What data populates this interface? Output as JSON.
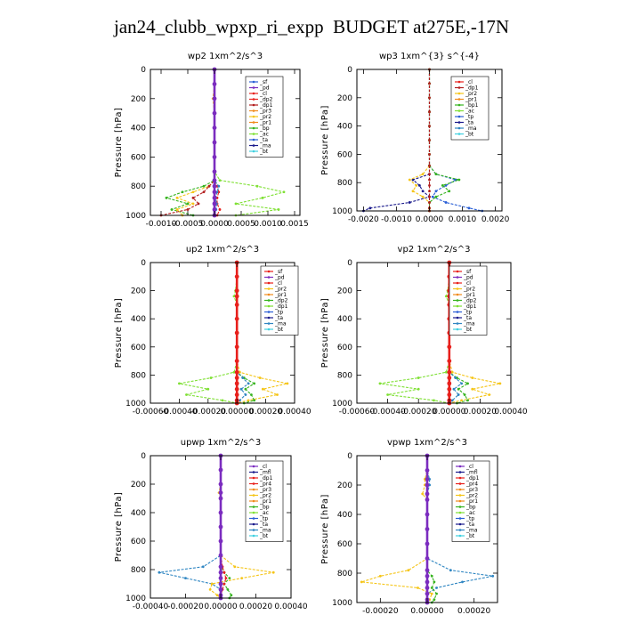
{
  "figure": {
    "title": "jan24_clubb_wpxp_ri_expp  BUDGET at275E,-17N"
  },
  "colors": {
    "red": "#e8201c",
    "darkred": "#b21e1e",
    "purple": "#7b2cbf",
    "magenta": "#c0399a",
    "orange": "#f08a1c",
    "yellow": "#f5c518",
    "green": "#36b31f",
    "lime": "#7fe034",
    "blue": "#2a5fd6",
    "navy": "#1a1a8c",
    "steel": "#2f86c2",
    "cyan": "#3fd0e0"
  },
  "chart_data": [
    {
      "type": "line",
      "title": "wp2  1xm^2/s^3",
      "ylabel": "Pressure [hPa]",
      "xlim": [
        -0.0012,
        0.0016
      ],
      "ylim": [
        1000,
        0
      ],
      "xticks": [
        -0.001,
        -0.0005,
        0.0,
        0.0005,
        0.001,
        0.0015
      ],
      "xticklabels": [
        "-0.0010",
        "-0.0005",
        "0.0000",
        "0.0005",
        "0.0010",
        "0.0015"
      ],
      "yticks": [
        0,
        200,
        400,
        600,
        800,
        1000
      ],
      "legend": [
        "_sf",
        "_pd",
        "_cl",
        "_dp2",
        "_dp1",
        "_pr3",
        "_pr2",
        "_pr1",
        "_bp",
        "_ac",
        "_ta",
        "_ma",
        "_bt"
      ],
      "legend_colors": [
        "blue",
        "purple",
        "red",
        "red",
        "darkred",
        "orange",
        "yellow",
        "orange",
        "green",
        "lime",
        "blue",
        "navy",
        "cyan"
      ],
      "y": [
        0,
        100,
        200,
        300,
        400,
        500,
        600,
        700,
        760,
        800,
        840,
        880,
        920,
        960,
        1000
      ],
      "series": [
        {
          "name": "_bp",
          "color": "lime",
          "values": [
            0,
            0,
            0,
            0,
            0,
            0,
            0,
            0,
            0.0001,
            0.0008,
            0.0013,
            0.0009,
            0.0004,
            0.0012,
            0.0004
          ]
        },
        {
          "name": "_pr1",
          "color": "green",
          "values": [
            0,
            0,
            0,
            0,
            0,
            0,
            0,
            0,
            0,
            -0.0002,
            -0.0006,
            -0.0009,
            -0.0005,
            -0.0008,
            -0.0004
          ]
        },
        {
          "name": "_pr2",
          "color": "yellow",
          "values": [
            0,
            0,
            -3e-05,
            0,
            0,
            0,
            0,
            0,
            0,
            -0.0001,
            -0.0004,
            -0.0007,
            -0.0004,
            -0.0007,
            -0.0006
          ]
        },
        {
          "name": "_dp1",
          "color": "darkred",
          "values": [
            0,
            0,
            0,
            0,
            0,
            0,
            0,
            0,
            0,
            -0.0001,
            -0.0002,
            -0.0004,
            -0.0003,
            -0.0005,
            -0.001
          ]
        },
        {
          "name": "_cl",
          "color": "red",
          "values": [
            0,
            0,
            0,
            0,
            0,
            0,
            0,
            0,
            0,
            5e-05,
            8e-05,
            5e-05,
            5e-05,
            0.0001,
            5e-05
          ]
        },
        {
          "name": "_ta",
          "color": "steel",
          "values": [
            0,
            0,
            0,
            0,
            0,
            0,
            0,
            0,
            0,
            8e-05,
            5e-05,
            2e-05,
            4e-05,
            3e-05,
            0.0
          ]
        },
        {
          "name": "_bt",
          "color": "purple",
          "values": [
            0,
            0,
            0,
            0,
            0,
            0,
            0,
            0,
            0,
            0,
            0,
            0,
            0,
            0,
            0
          ]
        }
      ]
    },
    {
      "type": "line",
      "title": "wp3  1xm^{3} s^{-4}",
      "ylabel": "Pressure [hPa]",
      "xlim": [
        -0.0022,
        0.0022
      ],
      "ylim": [
        1000,
        0
      ],
      "xticks": [
        -0.002,
        -0.001,
        0.0,
        0.001,
        0.002
      ],
      "xticklabels": [
        "-0.0020",
        "-0.0010",
        "0.0000",
        "0.0010",
        "0.0020"
      ],
      "yticks": [
        0,
        200,
        400,
        600,
        800,
        1000
      ],
      "legend": [
        "_cl",
        "_dp1",
        "_pr2",
        "_pr1",
        "_bp1",
        "_ac",
        "_tp",
        "_ta",
        "_ma",
        "_bt"
      ],
      "legend_colors": [
        "red",
        "darkred",
        "yellow",
        "orange",
        "green",
        "lime",
        "blue",
        "navy",
        "steel",
        "cyan"
      ],
      "y": [
        0,
        100,
        200,
        300,
        400,
        500,
        600,
        680,
        740,
        780,
        820,
        860,
        900,
        940,
        980,
        1000
      ],
      "series": [
        {
          "name": "_ta",
          "color": "navy",
          "values": [
            0,
            0,
            0,
            0,
            0,
            0,
            0,
            0,
            0,
            -0.0005,
            -0.0003,
            -0.0002,
            0,
            -0.0006,
            -0.0018,
            -0.002
          ]
        },
        {
          "name": "_tp",
          "color": "blue",
          "values": [
            0,
            0,
            0,
            0,
            0,
            0,
            0,
            0,
            0.0002,
            0.0008,
            0.0005,
            0.0002,
            0.0001,
            0.0005,
            0.0012,
            0.0016
          ]
        },
        {
          "name": "_pr2",
          "color": "yellow",
          "values": [
            0,
            0,
            0,
            0,
            0,
            0,
            0,
            0,
            -0.0002,
            -0.0006,
            -0.0004,
            -0.0005,
            -0.0002,
            0,
            0,
            0
          ]
        },
        {
          "name": "_ac",
          "color": "green",
          "values": [
            0,
            0,
            0,
            0,
            0,
            0,
            0,
            0,
            0.0002,
            0.0009,
            0.0004,
            0.0006,
            0.0002,
            0,
            0,
            0
          ]
        },
        {
          "name": "_dp1",
          "color": "darkred",
          "values": [
            0,
            0,
            0,
            0,
            0,
            0,
            0,
            0,
            0,
            0,
            0,
            0,
            0,
            0,
            0,
            0
          ]
        }
      ]
    },
    {
      "type": "line",
      "title": "up2  1xm^2/s^3",
      "ylabel": "Pressure [hPa]",
      "xlim": [
        -0.0006,
        0.0004
      ],
      "ylim": [
        1000,
        0
      ],
      "xticks": [
        -0.0006,
        -0.0004,
        -0.0002,
        0.0,
        0.0002,
        0.0004
      ],
      "xticklabels": [
        "-0.00060",
        "-0.00040",
        "-0.00020",
        "0.00000",
        "0.00020",
        "0.00040"
      ],
      "yticks": [
        0,
        200,
        400,
        600,
        800,
        1000
      ],
      "legend": [
        "_sf",
        "_pd",
        "_cl",
        "_pr2",
        "_pr1",
        "_dp2",
        "_dp1",
        "_tp",
        "_ta",
        "_ma",
        "_bt"
      ],
      "legend_colors": [
        "red",
        "purple",
        "red",
        "yellow",
        "orange",
        "green",
        "lime",
        "blue",
        "navy",
        "steel",
        "cyan"
      ],
      "y": [
        0,
        100,
        200,
        240,
        300,
        400,
        500,
        600,
        700,
        780,
        820,
        860,
        900,
        940,
        980,
        1000
      ],
      "series": [
        {
          "name": "_pr1",
          "color": "lime",
          "values": [
            0,
            0,
            -1e-05,
            -2e-05,
            0,
            0,
            0,
            0,
            0,
            -2e-05,
            -0.00018,
            -0.0004,
            -0.0002,
            -0.00035,
            -0.0001,
            0
          ]
        },
        {
          "name": "_pr2",
          "color": "yellow",
          "values": [
            0,
            0,
            0,
            0,
            0,
            0,
            0,
            0,
            0,
            2e-05,
            0.00016,
            0.00035,
            0.00018,
            0.00028,
            8e-05,
            0
          ]
        },
        {
          "name": "_dp1",
          "color": "green",
          "values": [
            0,
            0,
            0,
            0,
            0,
            0,
            0,
            0,
            0,
            0,
            5e-05,
            0.00012,
            6e-05,
            0.0001,
            0.00012,
            5e-05
          ]
        },
        {
          "name": "_ta",
          "color": "steel",
          "values": [
            0,
            0,
            0,
            0,
            0,
            0,
            0,
            0,
            0,
            0,
            4e-05,
            8e-05,
            3e-05,
            6e-05,
            2e-05,
            0
          ]
        },
        {
          "name": "_bt",
          "color": "red",
          "values": [
            0,
            0,
            0,
            0,
            0,
            0,
            0,
            0,
            0,
            0,
            0,
            0,
            0,
            0,
            0,
            0
          ]
        }
      ]
    },
    {
      "type": "line",
      "title": "vp2  1xm^2/s^3",
      "ylabel": "Pressure [hPa]",
      "xlim": [
        -0.0006,
        0.0004
      ],
      "ylim": [
        1000,
        0
      ],
      "xticks": [
        -0.0006,
        -0.0004,
        -0.0002,
        0.0,
        0.0002,
        0.0004
      ],
      "xticklabels": [
        "-0.00060",
        "-0.00040",
        "-0.00020",
        "0.00000",
        "0.00020",
        "0.00040"
      ],
      "yticks": [
        0,
        200,
        400,
        600,
        800,
        1000
      ],
      "legend": [
        "_sf",
        "_pd",
        "_cl",
        "_pr2",
        "_pr1",
        "_dp2",
        "_dp1",
        "_tp",
        "_ta",
        "_ma",
        "_bt"
      ],
      "legend_colors": [
        "red",
        "purple",
        "red",
        "yellow",
        "orange",
        "green",
        "lime",
        "blue",
        "navy",
        "steel",
        "cyan"
      ],
      "y": [
        0,
        100,
        200,
        240,
        300,
        400,
        500,
        600,
        700,
        780,
        820,
        860,
        900,
        940,
        980,
        1000
      ],
      "series": [
        {
          "name": "_pr1",
          "color": "lime",
          "values": [
            0,
            0,
            -1e-05,
            -2e-05,
            0,
            0,
            0,
            0,
            0,
            -2e-05,
            -0.0002,
            -0.00045,
            -0.0002,
            -0.0004,
            -0.0001,
            0
          ]
        },
        {
          "name": "_pr2",
          "color": "yellow",
          "values": [
            0,
            0,
            0,
            0,
            0,
            0,
            0,
            0,
            0,
            2e-05,
            0.00015,
            0.00033,
            0.00015,
            0.00026,
            8e-05,
            0
          ]
        },
        {
          "name": "_dp1",
          "color": "green",
          "values": [
            0,
            0,
            0,
            0,
            0,
            0,
            0,
            0,
            0,
            0,
            5e-05,
            0.00012,
            6e-05,
            0.0001,
            0.00012,
            5e-05
          ]
        },
        {
          "name": "_ta",
          "color": "steel",
          "values": [
            0,
            0,
            0,
            0,
            0,
            0,
            0,
            0,
            0,
            0,
            4e-05,
            8e-05,
            3e-05,
            6e-05,
            2e-05,
            0
          ]
        },
        {
          "name": "_bt",
          "color": "red",
          "values": [
            0,
            0,
            0,
            0,
            0,
            0,
            0,
            0,
            0,
            0,
            0,
            0,
            0,
            0,
            0,
            0
          ]
        }
      ]
    },
    {
      "type": "line",
      "title": "upwp  1xm^2/s^3",
      "ylabel": "Pressure [hPa]",
      "xlim": [
        -0.0004,
        0.0004
      ],
      "ylim": [
        1000,
        0
      ],
      "xticks": [
        -0.0004,
        -0.0002,
        0.0,
        0.0002,
        0.0004
      ],
      "xticklabels": [
        "-0.00040",
        "-0.00020",
        "0.00000",
        "0.00020",
        "0.00040"
      ],
      "yticks": [
        0,
        200,
        400,
        600,
        800,
        1000
      ],
      "legend": [
        "_cl",
        "_mfl",
        "_dp1",
        "_pr4",
        "_pr3",
        "_pr2",
        "_pr1",
        "_bp",
        "_ac",
        "_tp",
        "_ta",
        "_ma",
        "_bt"
      ],
      "legend_colors": [
        "purple",
        "navy",
        "red",
        "red",
        "orange",
        "yellow",
        "orange",
        "green",
        "lime",
        "blue",
        "navy",
        "steel",
        "cyan"
      ],
      "y": [
        0,
        100,
        200,
        260,
        300,
        400,
        500,
        600,
        700,
        780,
        820,
        860,
        900,
        940,
        980,
        1000
      ],
      "series": [
        {
          "name": "_ta",
          "color": "steel",
          "values": [
            0,
            0,
            0,
            0,
            0,
            0,
            0,
            0,
            0,
            -0.0001,
            -0.00035,
            -0.0002,
            -5e-05,
            0,
            0,
            0
          ]
        },
        {
          "name": "_pr2",
          "color": "yellow",
          "values": [
            0,
            0,
            0,
            -1e-05,
            0,
            0,
            0,
            0,
            0,
            8e-05,
            0.0003,
            0.00012,
            -5e-05,
            -6e-05,
            -2e-05,
            0
          ]
        },
        {
          "name": "_ac",
          "color": "green",
          "values": [
            0,
            0,
            0,
            0,
            0,
            0,
            0,
            0,
            0,
            0,
            2e-05,
            5e-05,
            2e-05,
            4e-05,
            6e-05,
            5e-05
          ]
        },
        {
          "name": "_cl",
          "color": "red",
          "values": [
            0,
            0,
            0,
            0,
            0,
            0,
            0,
            0,
            0,
            1e-05,
            2e-05,
            3e-05,
            2e-05,
            1e-05,
            0,
            0
          ]
        },
        {
          "name": "_bt",
          "color": "purple",
          "values": [
            0,
            0,
            0,
            0,
            0,
            0,
            0,
            0,
            0,
            0,
            0,
            0,
            0,
            0,
            0,
            0
          ]
        }
      ]
    },
    {
      "type": "line",
      "title": "vpwp  1xm^2/s^3",
      "ylabel": "Pressure [hPa]",
      "xlim": [
        -0.0003,
        0.0003
      ],
      "ylim": [
        1000,
        0
      ],
      "xticks": [
        -0.0002,
        0.0,
        0.0002
      ],
      "xticklabels": [
        "-0.00020",
        "0.00000",
        "0.00020"
      ],
      "yticks": [
        0,
        200,
        400,
        600,
        800,
        1000
      ],
      "legend": [
        "_cl",
        "_mfl",
        "_dp1",
        "_pr4",
        "_pr3",
        "_pr2",
        "_pr1",
        "_bp",
        "_ac",
        "_tp",
        "_ta",
        "_ma",
        "_bt"
      ],
      "legend_colors": [
        "purple",
        "navy",
        "red",
        "red",
        "orange",
        "yellow",
        "orange",
        "green",
        "lime",
        "blue",
        "navy",
        "steel",
        "cyan"
      ],
      "y": [
        0,
        100,
        160,
        200,
        260,
        300,
        400,
        500,
        600,
        700,
        780,
        820,
        860,
        900,
        940,
        980,
        1000
      ],
      "series": [
        {
          "name": "_ta",
          "color": "steel",
          "values": [
            0,
            0,
            1e-05,
            1e-05,
            0,
            0,
            0,
            0,
            0,
            0,
            0.0001,
            0.00028,
            0.00015,
            4e-05,
            0,
            0,
            0
          ]
        },
        {
          "name": "_pr2",
          "color": "yellow",
          "values": [
            0,
            0,
            -1e-05,
            -1e-05,
            -2e-05,
            0,
            0,
            0,
            0,
            0,
            -8e-05,
            -0.0002,
            -0.00028,
            -4e-05,
            2e-05,
            1e-05,
            0
          ]
        },
        {
          "name": "_ac",
          "color": "green",
          "values": [
            0,
            0,
            0,
            0,
            0,
            0,
            0,
            0,
            0,
            0,
            0,
            2e-05,
            3e-05,
            2e-05,
            4e-05,
            3e-05,
            2e-05
          ]
        },
        {
          "name": "_bt",
          "color": "purple",
          "values": [
            0,
            0,
            0,
            0,
            0,
            0,
            0,
            0,
            0,
            0,
            0,
            0,
            0,
            0,
            0,
            0,
            0
          ]
        }
      ]
    }
  ]
}
